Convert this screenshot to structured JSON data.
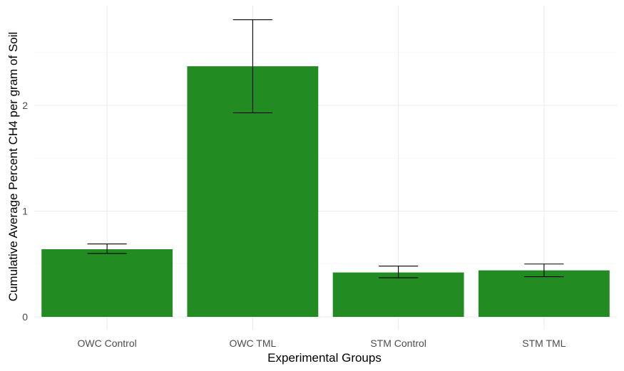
{
  "chart_data": {
    "type": "bar",
    "categories": [
      "OWC Control",
      "OWC TML",
      "STM Control",
      "STM TML"
    ],
    "values": [
      0.64,
      2.37,
      0.42,
      0.44
    ],
    "error_lower": [
      0.6,
      1.93,
      0.37,
      0.38
    ],
    "error_upper": [
      0.69,
      2.81,
      0.48,
      0.5
    ],
    "xlabel": "Experimental Groups",
    "ylabel": "Cumulative Average Percent CH4 per gram of Soil",
    "ylim": [
      0,
      2.94
    ],
    "yticks": [
      0,
      1,
      2
    ],
    "ytick_labels": [
      "0",
      "1",
      "2"
    ],
    "grid": true,
    "bar_color": "#228B22",
    "errorbar_color": "#000000",
    "legend": "none"
  }
}
